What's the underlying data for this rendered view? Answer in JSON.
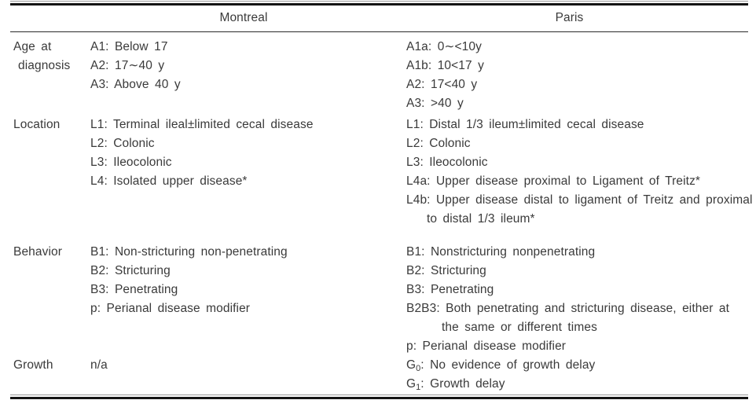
{
  "table": {
    "columns": [
      "",
      "Montreal",
      "Paris"
    ],
    "rows": {
      "age": {
        "label": [
          "Age at",
          "diagnosis"
        ],
        "montreal": [
          "A1: Below 17",
          "A2: 17∼40 y",
          "A3: Above 40 y"
        ],
        "paris": [
          "A1a: 0∼<10y",
          "A1b: 10<17 y",
          "A2: 17<40 y",
          "A3: >40 y"
        ]
      },
      "location": {
        "label": [
          "Location"
        ],
        "montreal": [
          "L1: Terminal ileal±limited cecal disease",
          "L2: Colonic",
          "L3: Ileocolonic",
          "L4: Isolated upper disease*"
        ],
        "paris": [
          "L1: Distal 1/3 ileum±limited cecal disease",
          "L2: Colonic",
          "L3: Ileocolonic",
          "L4a: Upper disease proximal to Ligament of Treitz*",
          "L4b: Upper disease distal to ligament of Treitz and proximal",
          "to distal 1/3 ileum*"
        ]
      },
      "behavior": {
        "label": [
          "Behavior"
        ],
        "montreal": [
          "B1: Non-stricturing non-penetrating",
          "B2: Stricturing",
          "B3: Penetrating",
          "p: Perianal disease modifier"
        ],
        "paris": [
          "B1: Nonstricturing nonpenetrating",
          "B2: Stricturing",
          "B3: Penetrating",
          "B2B3: Both penetrating and stricturing disease, either at",
          "the same or different times",
          "p: Perianal disease modifier"
        ]
      },
      "growth": {
        "label": [
          "Growth"
        ],
        "montreal": [
          "n/a"
        ],
        "paris_sub": [
          {
            "base": "G",
            "sub": "0",
            "text": ": No evidence of growth delay"
          },
          {
            "base": "G",
            "sub": "1",
            "text": ": Growth delay"
          }
        ]
      }
    }
  }
}
